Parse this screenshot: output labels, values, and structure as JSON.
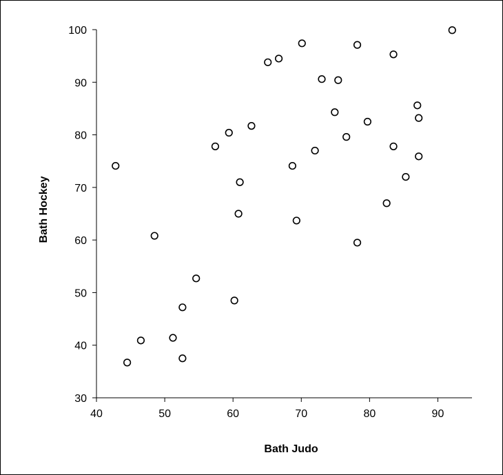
{
  "chart_data": {
    "type": "scatter",
    "title": "",
    "xlabel": "Bath Judo",
    "ylabel": "Bath Hockey",
    "xlim": [
      40,
      95
    ],
    "ylim": [
      30,
      100
    ],
    "x_ticks": [
      40,
      50,
      60,
      70,
      80,
      90
    ],
    "y_ticks": [
      30,
      40,
      50,
      60,
      70,
      80,
      90,
      100
    ],
    "grid": false,
    "legend": "none",
    "marker": "open-circle",
    "marker_color": "#000000",
    "points": [
      {
        "x": 42.8,
        "y": 74.1
      },
      {
        "x": 44.5,
        "y": 36.7
      },
      {
        "x": 46.5,
        "y": 40.9
      },
      {
        "x": 48.5,
        "y": 60.8
      },
      {
        "x": 51.2,
        "y": 41.4
      },
      {
        "x": 52.6,
        "y": 47.2
      },
      {
        "x": 52.6,
        "y": 37.5
      },
      {
        "x": 54.6,
        "y": 52.7
      },
      {
        "x": 57.4,
        "y": 77.8
      },
      {
        "x": 59.4,
        "y": 80.4
      },
      {
        "x": 60.2,
        "y": 48.5
      },
      {
        "x": 60.8,
        "y": 65.0
      },
      {
        "x": 61.0,
        "y": 71.0
      },
      {
        "x": 62.7,
        "y": 81.7
      },
      {
        "x": 65.1,
        "y": 93.8
      },
      {
        "x": 66.7,
        "y": 94.5
      },
      {
        "x": 68.7,
        "y": 74.1
      },
      {
        "x": 69.3,
        "y": 63.7
      },
      {
        "x": 70.1,
        "y": 97.4
      },
      {
        "x": 72.0,
        "y": 77.0
      },
      {
        "x": 73.0,
        "y": 90.6
      },
      {
        "x": 74.9,
        "y": 84.3
      },
      {
        "x": 75.4,
        "y": 90.4
      },
      {
        "x": 76.6,
        "y": 79.6
      },
      {
        "x": 78.2,
        "y": 97.1
      },
      {
        "x": 78.2,
        "y": 59.5
      },
      {
        "x": 79.7,
        "y": 82.5
      },
      {
        "x": 82.5,
        "y": 67.0
      },
      {
        "x": 83.5,
        "y": 95.3
      },
      {
        "x": 83.5,
        "y": 77.8
      },
      {
        "x": 85.3,
        "y": 72.0
      },
      {
        "x": 87.0,
        "y": 85.6
      },
      {
        "x": 87.2,
        "y": 83.2
      },
      {
        "x": 87.2,
        "y": 75.9
      },
      {
        "x": 92.1,
        "y": 99.9
      }
    ]
  }
}
